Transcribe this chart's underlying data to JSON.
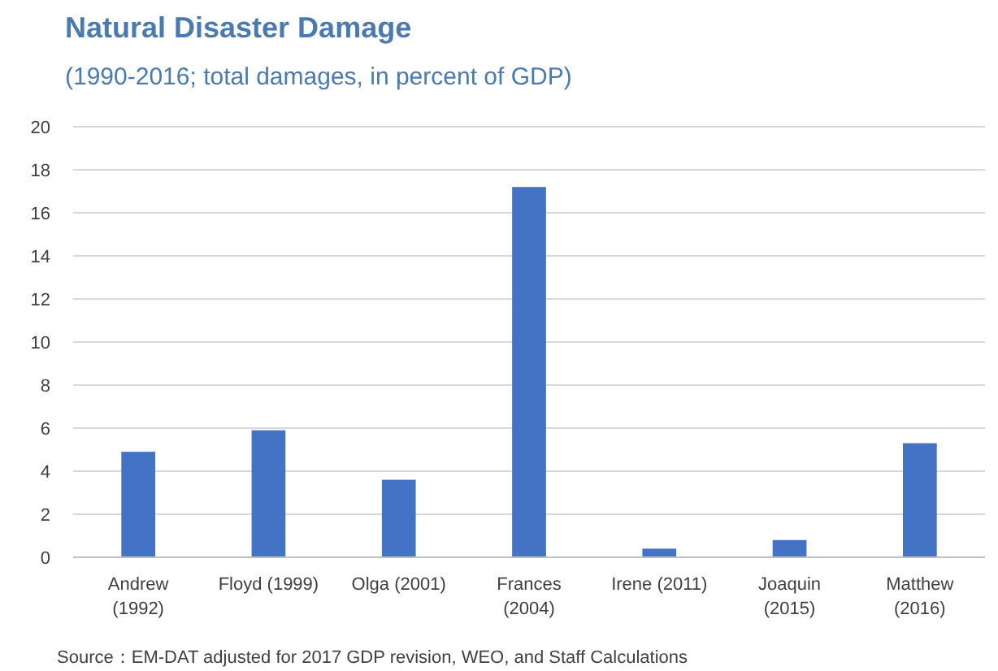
{
  "chart_data": {
    "type": "bar",
    "title": "Natural Disaster Damage",
    "subtitle": "(1990-2016; total damages, in percent of GDP)",
    "categories": [
      "Andrew (1992)",
      "Floyd (1999)",
      "Olga (2001)",
      "Frances (2004)",
      "Irene (2011)",
      "Joaquin (2015)",
      "Matthew (2016)"
    ],
    "values": [
      4.9,
      5.9,
      3.6,
      17.2,
      0.4,
      0.8,
      5.3
    ],
    "color": "#4472c4",
    "ylim": [
      0,
      20
    ],
    "yticks": [
      0,
      2,
      4,
      6,
      8,
      10,
      12,
      14,
      16,
      18,
      20
    ],
    "grid": "y",
    "annotations": [
      "Source：EM-DAT adjusted for 2017 GDP revision, WEO, and Staff Calculations"
    ]
  }
}
